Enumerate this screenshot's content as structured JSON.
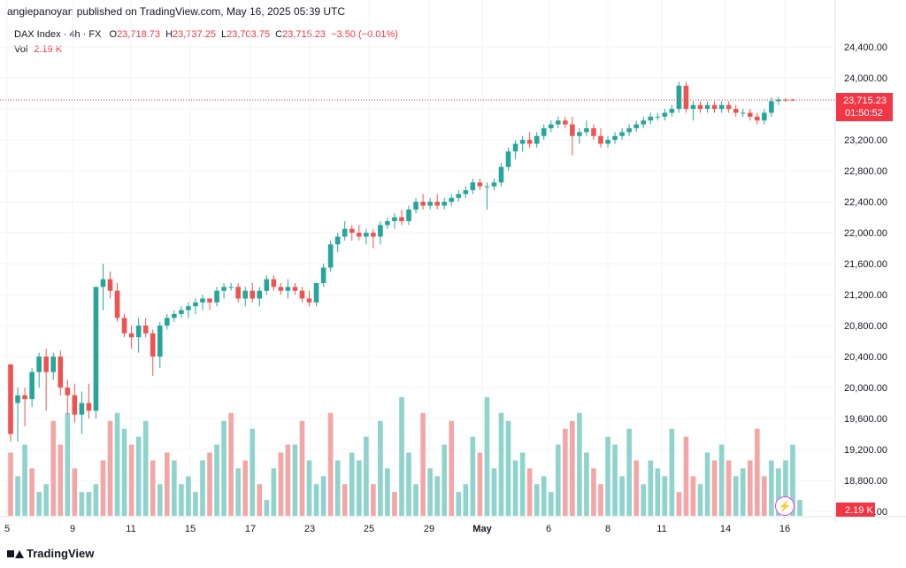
{
  "header": {
    "published": "angiepanoyan published on TradingView.com, May 16, 2025 05:39 UTC"
  },
  "legend": {
    "symbol": "DAX Index · 4h · FX",
    "o_label": "O",
    "o_value": "23,718.73",
    "h_label": "H",
    "h_value": "23,737.25",
    "l_label": "L",
    "l_value": "23,703.75",
    "c_label": "C",
    "c_value": "23,715.23",
    "change": "−3.50 (−0.01%)",
    "vol_label": "Vol",
    "vol_value": "2.19 K"
  },
  "price_tag": {
    "price": "23,715.23",
    "countdown": "01:50:52"
  },
  "vol_tag": "2.19 K",
  "footer": {
    "brand": "TradingView"
  },
  "colors": {
    "up": "#26a69a",
    "down": "#ef5350",
    "vol_up": "#8fd3cd",
    "vol_down": "#f4a6a6",
    "grid": "#f0f3fa",
    "tag": "#f23645"
  },
  "chart_data": {
    "type": "candlestick",
    "y_ticks": [
      "24,400.00",
      "24,000.00",
      "23,600.00",
      "23,200.00",
      "22,800.00",
      "22,400.00",
      "22,000.00",
      "21,600.00",
      "21,200.00",
      "20,800.00",
      "20,400.00",
      "20,000.00",
      "19,600.00",
      "19,200.00",
      "18,800.00",
      "18,400.00"
    ],
    "x_ticks": [
      "5",
      "9",
      "11",
      "15",
      "17",
      "23",
      "25",
      "29",
      "May",
      "6",
      "8",
      "11",
      "14",
      "16"
    ],
    "ylim": [
      18400,
      24550
    ],
    "last_price": 23715.23,
    "candles": [
      [
        20300,
        20300,
        19300,
        19400
      ],
      [
        19800,
        20000,
        19300,
        19900
      ],
      [
        19900,
        20000,
        19500,
        19850
      ],
      [
        19850,
        20250,
        19750,
        20200
      ],
      [
        20200,
        20450,
        20000,
        20400
      ],
      [
        20400,
        20500,
        19700,
        20200
      ],
      [
        20200,
        20450,
        20100,
        20400
      ],
      [
        20400,
        20480,
        19900,
        20000
      ],
      [
        20000,
        20100,
        19650,
        19900
      ],
      [
        19900,
        20050,
        19550,
        19650
      ],
      [
        19650,
        19950,
        19400,
        19800
      ],
      [
        19800,
        20050,
        19600,
        19700
      ],
      [
        19700,
        21300,
        19600,
        21300
      ],
      [
        21300,
        21600,
        21000,
        21400
      ],
      [
        21400,
        21500,
        21150,
        21250
      ],
      [
        21250,
        21350,
        20850,
        20900
      ],
      [
        20900,
        20950,
        20650,
        20700
      ],
      [
        20700,
        20800,
        20500,
        20650
      ],
      [
        20650,
        20900,
        20450,
        20800
      ],
      [
        20800,
        20900,
        20650,
        20700
      ],
      [
        20700,
        20750,
        20150,
        20400
      ],
      [
        20400,
        20850,
        20250,
        20800
      ],
      [
        20800,
        20950,
        20750,
        20900
      ],
      [
        20900,
        21000,
        20850,
        20950
      ],
      [
        20950,
        21050,
        20900,
        21000
      ],
      [
        21000,
        21100,
        20900,
        21050
      ],
      [
        21050,
        21150,
        20950,
        21100
      ],
      [
        21100,
        21200,
        21000,
        21150
      ],
      [
        21150,
        21150,
        21000,
        21100
      ],
      [
        21100,
        21300,
        21050,
        21250
      ],
      [
        21250,
        21350,
        21150,
        21300
      ],
      [
        21300,
        21350,
        21250,
        21300
      ],
      [
        21300,
        21350,
        21100,
        21150
      ],
      [
        21150,
        21300,
        21050,
        21250
      ],
      [
        21250,
        21350,
        21100,
        21150
      ],
      [
        21150,
        21300,
        21050,
        21250
      ],
      [
        21250,
        21450,
        21200,
        21400
      ],
      [
        21400,
        21450,
        21250,
        21300
      ],
      [
        21300,
        21350,
        21200,
        21250
      ],
      [
        21250,
        21400,
        21150,
        21300
      ],
      [
        21300,
        21350,
        21200,
        21250
      ],
      [
        21250,
        21300,
        21100,
        21150
      ],
      [
        21150,
        21250,
        21050,
        21100
      ],
      [
        21100,
        21350,
        21050,
        21350
      ],
      [
        21350,
        21600,
        21300,
        21550
      ],
      [
        21550,
        21900,
        21500,
        21850
      ],
      [
        21850,
        22000,
        21750,
        21950
      ],
      [
        21950,
        22150,
        21900,
        22050
      ],
      [
        22050,
        22100,
        21900,
        22000
      ],
      [
        22000,
        22100,
        21900,
        21950
      ],
      [
        21950,
        22050,
        21850,
        22000
      ],
      [
        22000,
        22050,
        21800,
        21950
      ],
      [
        21950,
        22150,
        21850,
        22100
      ],
      [
        22100,
        22200,
        22050,
        22150
      ],
      [
        22150,
        22250,
        22050,
        22200
      ],
      [
        22200,
        22300,
        22100,
        22150
      ],
      [
        22150,
        22350,
        22100,
        22300
      ],
      [
        22300,
        22450,
        22250,
        22400
      ],
      [
        22400,
        22500,
        22300,
        22350
      ],
      [
        22350,
        22450,
        22300,
        22400
      ],
      [
        22400,
        22500,
        22300,
        22350
      ],
      [
        22350,
        22450,
        22300,
        22400
      ],
      [
        22400,
        22500,
        22350,
        22450
      ],
      [
        22450,
        22550,
        22400,
        22500
      ],
      [
        22500,
        22600,
        22450,
        22550
      ],
      [
        22550,
        22700,
        22500,
        22650
      ],
      [
        22650,
        22700,
        22550,
        22600
      ],
      [
        22600,
        22650,
        22300,
        22600
      ],
      [
        22600,
        22700,
        22550,
        22650
      ],
      [
        22650,
        22900,
        22600,
        22850
      ],
      [
        22850,
        23100,
        22800,
        23050
      ],
      [
        23050,
        23200,
        22950,
        23150
      ],
      [
        23150,
        23250,
        23050,
        23200
      ],
      [
        23200,
        23300,
        23100,
        23150
      ],
      [
        23150,
        23300,
        23100,
        23250
      ],
      [
        23250,
        23400,
        23200,
        23350
      ],
      [
        23350,
        23450,
        23300,
        23400
      ],
      [
        23400,
        23500,
        23350,
        23450
      ],
      [
        23450,
        23500,
        23350,
        23400
      ],
      [
        23400,
        23500,
        23000,
        23250
      ],
      [
        23250,
        23350,
        23150,
        23300
      ],
      [
        23300,
        23450,
        23250,
        23350
      ],
      [
        23350,
        23400,
        23200,
        23250
      ],
      [
        23250,
        23350,
        23100,
        23150
      ],
      [
        23150,
        23250,
        23100,
        23200
      ],
      [
        23200,
        23300,
        23150,
        23250
      ],
      [
        23250,
        23350,
        23200,
        23300
      ],
      [
        23300,
        23400,
        23250,
        23350
      ],
      [
        23350,
        23450,
        23300,
        23400
      ],
      [
        23400,
        23500,
        23350,
        23450
      ],
      [
        23450,
        23550,
        23400,
        23500
      ],
      [
        23500,
        23550,
        23450,
        23500
      ],
      [
        23500,
        23600,
        23450,
        23550
      ],
      [
        23550,
        23650,
        23500,
        23600
      ],
      [
        23600,
        23950,
        23550,
        23900
      ],
      [
        23900,
        23950,
        23550,
        23600
      ],
      [
        23600,
        23700,
        23450,
        23650
      ],
      [
        23650,
        23700,
        23550,
        23600
      ],
      [
        23600,
        23700,
        23550,
        23650
      ],
      [
        23650,
        23700,
        23550,
        23600
      ],
      [
        23600,
        23700,
        23550,
        23650
      ],
      [
        23650,
        23700,
        23550,
        23600
      ],
      [
        23600,
        23650,
        23500,
        23550
      ],
      [
        23550,
        23600,
        23500,
        23550
      ],
      [
        23550,
        23600,
        23450,
        23500
      ],
      [
        23500,
        23550,
        23400,
        23450
      ],
      [
        23450,
        23600,
        23400,
        23550
      ],
      [
        23550,
        23750,
        23500,
        23700
      ],
      [
        23700,
        23750,
        23650,
        23720
      ],
      [
        23720,
        23740,
        23690,
        23710
      ],
      [
        23718,
        23737,
        23703,
        23715
      ]
    ],
    "volume_ylim": [
      0,
      16
    ],
    "volume": [
      8,
      5,
      9,
      6,
      3,
      4,
      12,
      9,
      13,
      6,
      3,
      3,
      4,
      7,
      12,
      13,
      11,
      9,
      10,
      12,
      7,
      4,
      8,
      7,
      4,
      5,
      3,
      7,
      8,
      9,
      12,
      13,
      6,
      7,
      11,
      4,
      2,
      6,
      8,
      9,
      9,
      12,
      7,
      4,
      5,
      13,
      7,
      4,
      8,
      7,
      10,
      4,
      12,
      6,
      3,
      15,
      8,
      4,
      13,
      6,
      5,
      9,
      12,
      3,
      4,
      10,
      8,
      15,
      6,
      13,
      12,
      7,
      8,
      6,
      4,
      5,
      3,
      9,
      11,
      12,
      13,
      8,
      6,
      4,
      10,
      9,
      5,
      11,
      7,
      4,
      7,
      6,
      5,
      11,
      3,
      10,
      5,
      4,
      8,
      7,
      9,
      7,
      5,
      6,
      7,
      11,
      5,
      7,
      6,
      7,
      9,
      2
    ],
    "volume_up": [
      false,
      true,
      true,
      false,
      true,
      true,
      false,
      false,
      true,
      false,
      true,
      true,
      true,
      false,
      false,
      true,
      true,
      false,
      true,
      true,
      false,
      true,
      false,
      true,
      true,
      true,
      true,
      true,
      false,
      true,
      true,
      false,
      true,
      false,
      true,
      false,
      true,
      true,
      false,
      false,
      true,
      false,
      true,
      true,
      true,
      false,
      true,
      false,
      true,
      true,
      true,
      false,
      true,
      true,
      false,
      true,
      true,
      true,
      false,
      true,
      true,
      true,
      false,
      true,
      true,
      true,
      false,
      true,
      true,
      true,
      true,
      true,
      true,
      false,
      true,
      true,
      true,
      true,
      false,
      false,
      true,
      true,
      false,
      false,
      true,
      true,
      true,
      true,
      false,
      true,
      true,
      true,
      true,
      true,
      false,
      false,
      false,
      true,
      true,
      false,
      true,
      false,
      true,
      true,
      false,
      false,
      false,
      true,
      true,
      true,
      true,
      true
    ]
  }
}
